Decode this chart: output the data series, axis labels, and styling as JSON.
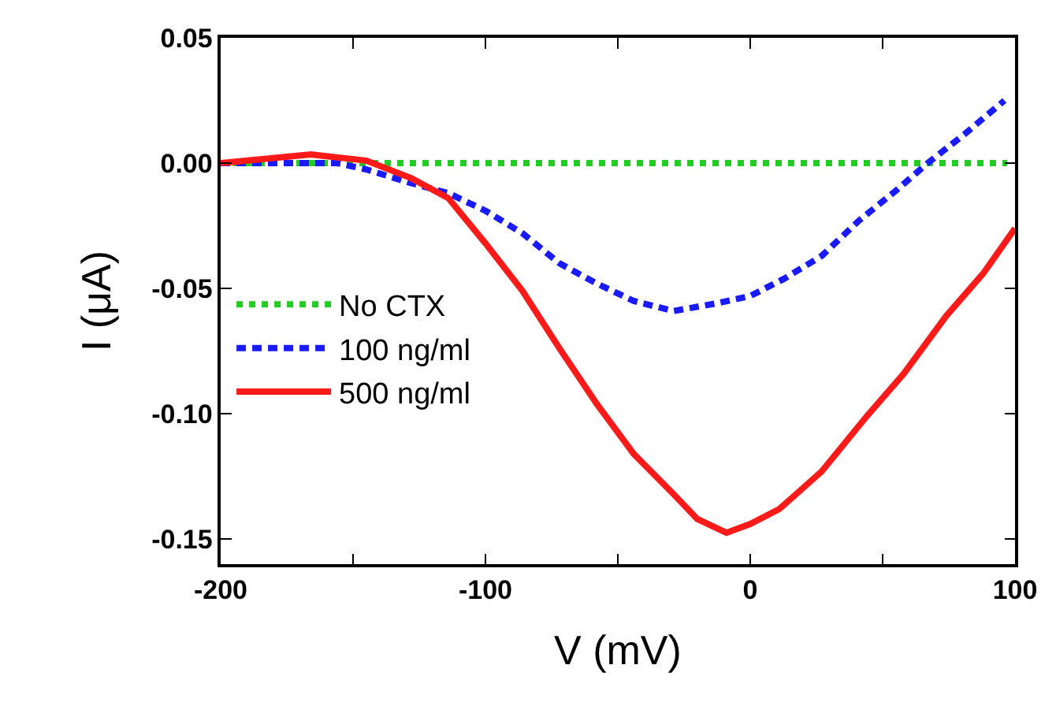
{
  "chart_data": {
    "type": "line",
    "xlabel": "V (mV)",
    "ylabel": "I (μA)",
    "xlim": [
      -200,
      100
    ],
    "xticks": [
      -200,
      {
        "value": -150,
        "label": null
      },
      -100,
      {
        "value": -50,
        "label": null
      },
      0,
      {
        "value": 50,
        "label": null
      },
      100
    ],
    "ylim": [
      -0.16,
      0.05
    ],
    "yticks": [
      {
        "value": 0.05,
        "label": "0.05"
      },
      {
        "value": 0.0,
        "label": "0.00"
      },
      {
        "value": -0.05,
        "label": "-0.05"
      },
      {
        "value": -0.1,
        "label": "-0.10"
      },
      {
        "value": -0.15,
        "label": "-0.15"
      }
    ],
    "legend": "bottom left",
    "series": [
      {
        "name": "No CTX",
        "color": "#22cc22",
        "line_style": "dotted",
        "x": [
          -200,
          -100,
          0,
          97
        ],
        "values": [
          0,
          0,
          0,
          0
        ]
      },
      {
        "name": "100 ng/ml",
        "color": "#1a1aff",
        "line_style": "dashed",
        "x": [
          -200,
          -178,
          -156,
          -145,
          -128,
          -114,
          -100,
          -86,
          -72,
          -58,
          -44,
          -29,
          -13,
          0,
          13,
          27,
          41,
          55,
          67,
          81,
          96
        ],
        "values": [
          0,
          0,
          0,
          -0.0025,
          -0.008,
          -0.012,
          -0.019,
          -0.028,
          -0.04,
          -0.048,
          -0.055,
          -0.059,
          -0.056,
          -0.053,
          -0.046,
          -0.037,
          -0.023,
          -0.011,
          0,
          0.0116,
          0.025
        ]
      },
      {
        "name": "500 ng/ml",
        "color": "#ff1a1a",
        "line_style": "solid",
        "x": [
          -200,
          -166,
          -145,
          -128,
          -114,
          -100,
          -86,
          -72,
          -58,
          -44,
          -29,
          -20,
          -9,
          0,
          11,
          27,
          44,
          58,
          74,
          88,
          100
        ],
        "values": [
          0,
          0.0035,
          0.001,
          -0.006,
          -0.014,
          -0.032,
          -0.051,
          -0.074,
          -0.096,
          -0.116,
          -0.132,
          -0.142,
          -0.1475,
          -0.144,
          -0.138,
          -0.123,
          -0.101,
          -0.084,
          -0.061,
          -0.044,
          -0.026
        ]
      }
    ]
  }
}
